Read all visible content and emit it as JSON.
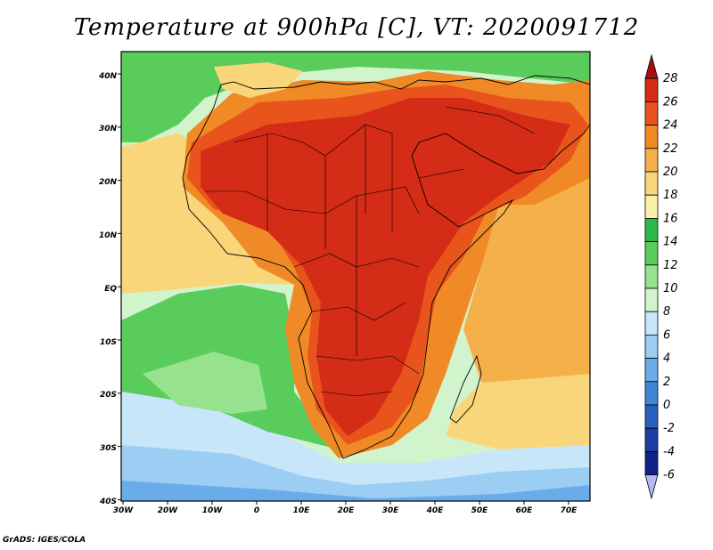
{
  "title": "Temperature at 900hPa [C], VT: 2020091712",
  "credit": "GrADS: IGES/COLA",
  "map": {
    "lat_labels": [
      "40N",
      "30N",
      "20N",
      "10N",
      "EQ",
      "10S",
      "20S",
      "30S",
      "40S"
    ],
    "lon_labels": [
      "30W",
      "20W",
      "10W",
      "0",
      "10E",
      "20E",
      "30E",
      "40E",
      "50E",
      "60E",
      "70E"
    ]
  },
  "colorbar": {
    "labels": [
      "28",
      "26",
      "24",
      "22",
      "20",
      "18",
      "16",
      "14",
      "12",
      "10",
      "8",
      "6",
      "4",
      "2",
      "0",
      "-2",
      "-4",
      "-6"
    ],
    "colors": [
      "#a50f0f",
      "#d42c16",
      "#e8541c",
      "#f08a26",
      "#f6b04a",
      "#f9d67a",
      "#fbf0a8",
      "#2eb84a",
      "#59cc5c",
      "#97e28e",
      "#d2f4cc",
      "#c8e6fa",
      "#9ccdf2",
      "#6aacea",
      "#3f86d8",
      "#2a5fc2",
      "#1b3ea6",
      "#0e2486",
      "#b8b8f6"
    ]
  }
}
